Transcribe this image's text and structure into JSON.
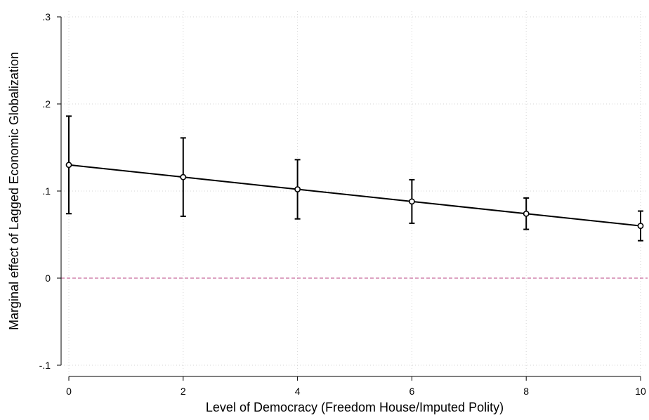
{
  "chart_data": {
    "type": "line",
    "title": "",
    "xlabel": "Level of Democracy (Freedom House/Imputed Polity)",
    "ylabel": "Marginal effect of Lagged Economic Globalization",
    "xlim": [
      0,
      10
    ],
    "ylim": [
      -0.1,
      0.3
    ],
    "x_ticks": [
      0,
      2,
      4,
      6,
      8,
      10
    ],
    "x_tick_labels": [
      "0",
      "2",
      "4",
      "6",
      "8",
      "10"
    ],
    "y_ticks": [
      -0.1,
      0,
      0.1,
      0.2,
      0.3
    ],
    "y_tick_labels": [
      "-.1",
      "0",
      ".1",
      ".2",
      ".3"
    ],
    "grid": true,
    "reference_line": {
      "y": 0,
      "style": "dashed",
      "color": "#c86a9c"
    },
    "series": [
      {
        "x": [
          0,
          2,
          4,
          6,
          8,
          10
        ],
        "y": [
          0.13,
          0.116,
          0.102,
          0.088,
          0.074,
          0.06
        ],
        "ci_lower": [
          0.074,
          0.071,
          0.068,
          0.063,
          0.056,
          0.043
        ],
        "ci_upper": [
          0.186,
          0.161,
          0.136,
          0.113,
          0.092,
          0.077
        ],
        "color": "#000000",
        "marker": "hollow-circle"
      }
    ]
  }
}
